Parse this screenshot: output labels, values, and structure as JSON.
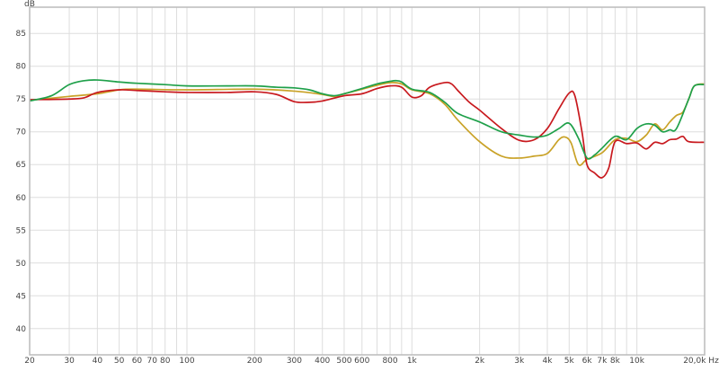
{
  "chart_data": {
    "type": "line",
    "title": "",
    "ylabel": "dB",
    "xlabel": "",
    "x_scale": "log",
    "xlim": [
      20,
      20000
    ],
    "ylim": [
      36,
      89
    ],
    "grid": true,
    "y_ticks": [
      40,
      45,
      50,
      55,
      60,
      65,
      70,
      75,
      80,
      85
    ],
    "x_ticks": [
      {
        "v": 20,
        "label": "20"
      },
      {
        "v": 30,
        "label": "30"
      },
      {
        "v": 40,
        "label": "40"
      },
      {
        "v": 50,
        "label": "50"
      },
      {
        "v": 60,
        "label": "60"
      },
      {
        "v": 70,
        "label": "70"
      },
      {
        "v": 80,
        "label": "80"
      },
      {
        "v": 100,
        "label": "100"
      },
      {
        "v": 200,
        "label": "200"
      },
      {
        "v": 300,
        "label": "300"
      },
      {
        "v": 400,
        "label": "400"
      },
      {
        "v": 500,
        "label": "500"
      },
      {
        "v": 600,
        "label": "600"
      },
      {
        "v": 800,
        "label": "800"
      },
      {
        "v": 1000,
        "label": "1k"
      },
      {
        "v": 2000,
        "label": "2k"
      },
      {
        "v": 3000,
        "label": "3k"
      },
      {
        "v": 4000,
        "label": "4k"
      },
      {
        "v": 5000,
        "label": "5k"
      },
      {
        "v": 6000,
        "label": "6k"
      },
      {
        "v": 7000,
        "label": "7k"
      },
      {
        "v": 8000,
        "label": "8k"
      },
      {
        "v": 10000,
        "label": "10k"
      },
      {
        "v": 20000,
        "label": "20,0k Hz"
      }
    ],
    "x_gridlines": [
      20,
      30,
      40,
      50,
      60,
      70,
      80,
      90,
      100,
      200,
      300,
      400,
      500,
      600,
      700,
      800,
      900,
      1000,
      2000,
      3000,
      4000,
      5000,
      6000,
      7000,
      8000,
      9000,
      10000,
      20000
    ],
    "series": [
      {
        "color": "#c9a227",
        "points": [
          [
            20,
            74.8
          ],
          [
            30,
            75.4
          ],
          [
            40,
            75.8
          ],
          [
            50,
            76.4
          ],
          [
            60,
            76.5
          ],
          [
            100,
            76.4
          ],
          [
            200,
            76.5
          ],
          [
            300,
            76.2
          ],
          [
            400,
            75.7
          ],
          [
            450,
            75.4
          ],
          [
            500,
            75.8
          ],
          [
            600,
            76.5
          ],
          [
            700,
            77.1
          ],
          [
            800,
            77.5
          ],
          [
            900,
            77.3
          ],
          [
            1000,
            76.4
          ],
          [
            1200,
            75.8
          ],
          [
            1400,
            74.2
          ],
          [
            1600,
            71.8
          ],
          [
            2000,
            68.5
          ],
          [
            2500,
            66.3
          ],
          [
            3000,
            66.0
          ],
          [
            3500,
            66.3
          ],
          [
            4000,
            66.7
          ],
          [
            4500,
            68.8
          ],
          [
            4800,
            69.2
          ],
          [
            5100,
            68.3
          ],
          [
            5500,
            65.0
          ],
          [
            6000,
            65.8
          ],
          [
            7000,
            66.8
          ],
          [
            8000,
            68.8
          ],
          [
            9000,
            69.0
          ],
          [
            10000,
            68.5
          ],
          [
            11000,
            69.5
          ],
          [
            12000,
            71.2
          ],
          [
            13000,
            70.3
          ],
          [
            14000,
            71.5
          ],
          [
            15000,
            72.5
          ],
          [
            16000,
            73.0
          ],
          [
            17000,
            75.0
          ],
          [
            18000,
            77.0
          ],
          [
            20000,
            77.3
          ]
        ]
      },
      {
        "color": "#c8191e",
        "points": [
          [
            20,
            74.9
          ],
          [
            30,
            75.0
          ],
          [
            35,
            75.2
          ],
          [
            40,
            76.0
          ],
          [
            50,
            76.4
          ],
          [
            60,
            76.3
          ],
          [
            80,
            76.1
          ],
          [
            100,
            76.0
          ],
          [
            150,
            76.0
          ],
          [
            200,
            76.1
          ],
          [
            250,
            75.7
          ],
          [
            300,
            74.6
          ],
          [
            350,
            74.5
          ],
          [
            400,
            74.7
          ],
          [
            500,
            75.5
          ],
          [
            600,
            75.8
          ],
          [
            700,
            76.6
          ],
          [
            800,
            77.0
          ],
          [
            900,
            76.8
          ],
          [
            1000,
            75.3
          ],
          [
            1100,
            75.5
          ],
          [
            1200,
            76.8
          ],
          [
            1400,
            77.5
          ],
          [
            1500,
            77.3
          ],
          [
            1600,
            76.3
          ],
          [
            1800,
            74.5
          ],
          [
            2000,
            73.3
          ],
          [
            2500,
            70.5
          ],
          [
            3000,
            68.7
          ],
          [
            3500,
            68.8
          ],
          [
            4000,
            70.5
          ],
          [
            4500,
            73.5
          ],
          [
            5000,
            75.9
          ],
          [
            5300,
            75.5
          ],
          [
            5700,
            70.0
          ],
          [
            6000,
            65.0
          ],
          [
            6500,
            63.7
          ],
          [
            7000,
            63.0
          ],
          [
            7500,
            64.5
          ],
          [
            8000,
            68.5
          ],
          [
            9000,
            68.2
          ],
          [
            10000,
            68.3
          ],
          [
            11000,
            67.4
          ],
          [
            12000,
            68.4
          ],
          [
            13000,
            68.2
          ],
          [
            14000,
            68.8
          ],
          [
            15000,
            68.9
          ],
          [
            16000,
            69.3
          ],
          [
            17000,
            68.5
          ],
          [
            20000,
            68.4
          ]
        ]
      },
      {
        "color": "#1fa04a",
        "points": [
          [
            20,
            74.7
          ],
          [
            25,
            75.5
          ],
          [
            30,
            77.2
          ],
          [
            35,
            77.8
          ],
          [
            40,
            77.9
          ],
          [
            50,
            77.6
          ],
          [
            60,
            77.4
          ],
          [
            80,
            77.2
          ],
          [
            100,
            77.0
          ],
          [
            150,
            77.0
          ],
          [
            200,
            77.0
          ],
          [
            250,
            76.8
          ],
          [
            300,
            76.7
          ],
          [
            350,
            76.4
          ],
          [
            400,
            75.8
          ],
          [
            450,
            75.5
          ],
          [
            500,
            75.8
          ],
          [
            600,
            76.6
          ],
          [
            700,
            77.3
          ],
          [
            800,
            77.7
          ],
          [
            850,
            77.8
          ],
          [
            900,
            77.6
          ],
          [
            1000,
            76.5
          ],
          [
            1200,
            76.0
          ],
          [
            1400,
            74.5
          ],
          [
            1600,
            72.8
          ],
          [
            2000,
            71.5
          ],
          [
            2500,
            70.0
          ],
          [
            3000,
            69.5
          ],
          [
            3500,
            69.2
          ],
          [
            4000,
            69.5
          ],
          [
            4500,
            70.5
          ],
          [
            5000,
            71.3
          ],
          [
            5500,
            69.0
          ],
          [
            6000,
            66.0
          ],
          [
            6500,
            66.5
          ],
          [
            7000,
            67.5
          ],
          [
            8000,
            69.3
          ],
          [
            9000,
            68.8
          ],
          [
            10000,
            70.5
          ],
          [
            11000,
            71.2
          ],
          [
            12000,
            71.0
          ],
          [
            13000,
            70.0
          ],
          [
            14000,
            70.3
          ],
          [
            15000,
            70.5
          ],
          [
            17000,
            75.0
          ],
          [
            18000,
            77.0
          ],
          [
            20000,
            77.2
          ]
        ]
      }
    ]
  }
}
